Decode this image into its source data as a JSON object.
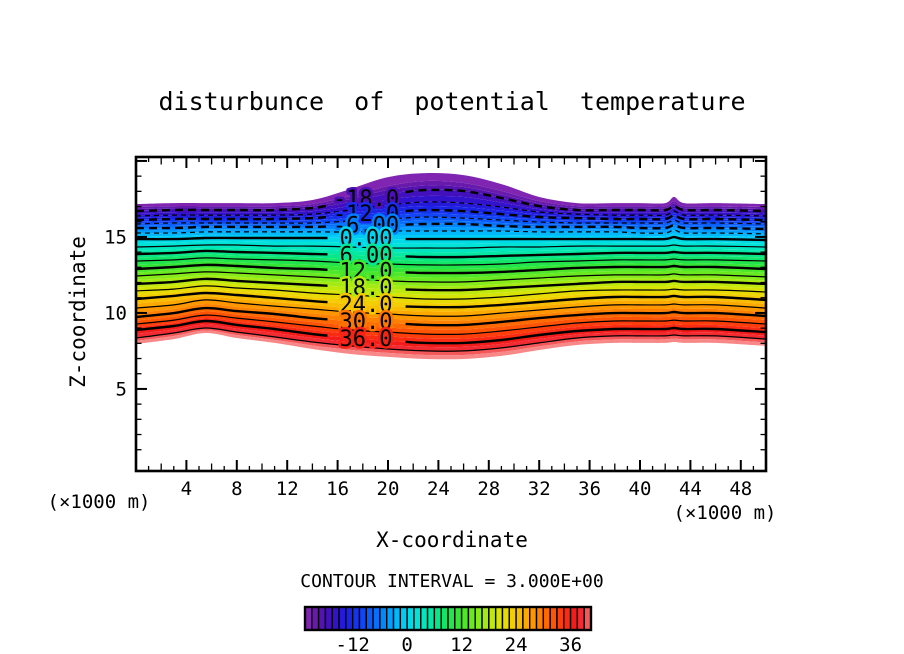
{
  "page": {
    "background": "#ffffff",
    "ink": "#000000"
  },
  "title": {
    "text": "disturbunce  of  potential  temperature"
  },
  "axes": {
    "x": {
      "label": "X-coordinate",
      "units": "(×1000 m)",
      "major_ticks": [
        4,
        8,
        12,
        16,
        20,
        24,
        28,
        32,
        36,
        40,
        44,
        48
      ],
      "minor_step": 1
    },
    "z": {
      "label": "Z-coordinate",
      "units": "(×1000 m)",
      "major_ticks": [
        5,
        10,
        15
      ],
      "minor_step": 1
    }
  },
  "footer": {
    "contour_interval_text": "CONTOUR INTERVAL = 3.000E+00"
  },
  "colorbar": {
    "vmin": -22.5,
    "vmax": 40.5,
    "cell_interval": 1.5,
    "tick_values": [
      -12,
      0,
      12,
      24,
      36
    ],
    "tick_labels": [
      "-12",
      "0",
      "12",
      "24",
      "36"
    ]
  },
  "chart_data": {
    "type": "filled-contour",
    "title": "disturbunce of potential temperature",
    "xlabel": "X-coordinate",
    "ylabel": "Z-coordinate",
    "units": "(×1000 m)",
    "contour_interval": 3,
    "xlim": [
      0,
      50
    ],
    "zlim": [
      -0.4,
      20.26
    ],
    "grid": false,
    "labeled_contours": [
      {
        "level": -18,
        "text": "-18.0"
      },
      {
        "level": -12,
        "text": "-12.0"
      },
      {
        "level": -6,
        "text": "-6.00"
      },
      {
        "level": 0,
        "text": "0.00"
      },
      {
        "level": 6,
        "text": "6.00"
      },
      {
        "level": 12,
        "text": "12.0"
      },
      {
        "level": 18,
        "text": "18.0"
      },
      {
        "level": 24,
        "text": "24.0"
      },
      {
        "level": 30,
        "text": "30.0"
      },
      {
        "level": 36,
        "text": "36.0"
      }
    ],
    "line_levels": [
      -18,
      -15,
      -12,
      -9,
      -6,
      -3,
      0,
      3,
      6,
      9,
      12,
      15,
      18,
      21,
      24,
      27,
      30,
      33,
      36,
      39
    ],
    "x_grid": [
      0,
      3,
      5.5,
      8,
      11,
      14,
      17,
      20,
      23,
      26,
      29,
      32,
      35,
      38,
      40,
      42,
      42.7,
      43.5,
      46,
      50
    ],
    "contours": [
      {
        "level": -22.5,
        "role": "fill-top",
        "z": [
          17.16,
          17.23,
          17.23,
          17.23,
          17.23,
          17.43,
          18.15,
          18.94,
          19.2,
          19.07,
          18.48,
          17.63,
          17.23,
          17.23,
          17.23,
          17.23,
          17.63,
          17.23,
          17.23,
          17.16
        ]
      },
      {
        "level": -21,
        "z": [
          16.97,
          17.03,
          17.03,
          17.03,
          17.03,
          17.17,
          17.69,
          18.35,
          18.68,
          18.55,
          18.02,
          17.36,
          17.03,
          17.03,
          17.03,
          17.03,
          17.36,
          17.03,
          17.03,
          16.97
        ]
      },
      {
        "level": -18,
        "z": [
          16.7,
          16.77,
          16.77,
          16.77,
          16.77,
          16.9,
          17.3,
          17.83,
          18.09,
          18.02,
          17.56,
          17.03,
          16.77,
          16.77,
          16.77,
          16.77,
          17.03,
          16.77,
          16.77,
          16.7
        ]
      },
      {
        "level": -15,
        "z": [
          16.38,
          16.44,
          16.44,
          16.44,
          16.44,
          16.5,
          16.77,
          17.1,
          17.3,
          17.23,
          16.97,
          16.64,
          16.5,
          16.44,
          16.44,
          16.44,
          16.7,
          16.44,
          16.44,
          16.38
        ]
      },
      {
        "level": -12,
        "z": [
          16.11,
          16.18,
          16.18,
          16.18,
          16.18,
          16.24,
          16.44,
          16.64,
          16.77,
          16.7,
          16.5,
          16.31,
          16.24,
          16.18,
          16.18,
          16.18,
          16.44,
          16.18,
          16.18,
          16.11
        ]
      },
      {
        "level": -9,
        "z": [
          15.85,
          15.92,
          15.92,
          15.92,
          15.92,
          15.92,
          16.05,
          16.18,
          16.31,
          16.24,
          16.11,
          15.98,
          15.92,
          15.92,
          15.92,
          15.92,
          16.11,
          15.92,
          15.92,
          15.85
        ]
      },
      {
        "level": -6,
        "z": [
          15.59,
          15.59,
          15.66,
          15.66,
          15.66,
          15.66,
          15.72,
          15.78,
          15.85,
          15.85,
          15.72,
          15.66,
          15.66,
          15.66,
          15.59,
          15.59,
          15.78,
          15.59,
          15.59,
          15.52
        ]
      },
      {
        "level": -3,
        "z": [
          15.26,
          15.26,
          15.33,
          15.33,
          15.33,
          15.33,
          15.33,
          15.39,
          15.39,
          15.39,
          15.39,
          15.33,
          15.33,
          15.33,
          15.26,
          15.26,
          15.46,
          15.26,
          15.26,
          15.2
        ]
      },
      {
        "level": 0,
        "z": [
          14.86,
          14.86,
          14.93,
          14.93,
          14.93,
          14.93,
          14.93,
          14.86,
          14.86,
          14.86,
          14.86,
          14.86,
          14.86,
          14.86,
          14.86,
          14.86,
          14.99,
          14.86,
          14.86,
          14.8
        ]
      },
      {
        "level": 3,
        "z": [
          14.34,
          14.4,
          14.47,
          14.47,
          14.4,
          14.4,
          14.34,
          14.27,
          14.27,
          14.27,
          14.34,
          14.34,
          14.4,
          14.4,
          14.4,
          14.4,
          14.47,
          14.4,
          14.4,
          14.34
        ]
      },
      {
        "level": 6,
        "z": [
          13.88,
          13.95,
          14.08,
          14.01,
          13.95,
          13.88,
          13.82,
          13.75,
          13.68,
          13.68,
          13.75,
          13.82,
          13.88,
          13.95,
          13.95,
          13.95,
          14.01,
          13.95,
          13.95,
          13.88
        ]
      },
      {
        "level": 9,
        "z": [
          13.42,
          13.49,
          13.62,
          13.55,
          13.49,
          13.42,
          13.29,
          13.22,
          13.16,
          13.16,
          13.22,
          13.36,
          13.42,
          13.49,
          13.49,
          13.49,
          13.55,
          13.49,
          13.49,
          13.42
        ]
      },
      {
        "level": 12,
        "z": [
          12.89,
          13.02,
          13.16,
          13.09,
          12.96,
          12.89,
          12.76,
          12.7,
          12.63,
          12.63,
          12.7,
          12.83,
          12.96,
          13.02,
          13.02,
          13.02,
          13.09,
          13.02,
          13.02,
          12.89
        ]
      },
      {
        "level": 15,
        "z": [
          12.43,
          12.57,
          12.7,
          12.63,
          12.5,
          12.37,
          12.24,
          12.11,
          12.04,
          12.04,
          12.17,
          12.3,
          12.43,
          12.5,
          12.5,
          12.5,
          12.57,
          12.5,
          12.5,
          12.37
        ]
      },
      {
        "level": 18,
        "z": [
          11.91,
          12.04,
          12.24,
          12.11,
          11.97,
          11.84,
          11.7,
          11.57,
          11.51,
          11.51,
          11.64,
          11.78,
          11.91,
          12.04,
          12.04,
          12.04,
          12.11,
          12.04,
          12.04,
          11.91
        ]
      },
      {
        "level": 21,
        "z": [
          11.45,
          11.57,
          11.78,
          11.64,
          11.51,
          11.31,
          11.18,
          11.05,
          10.92,
          10.92,
          11.05,
          11.25,
          11.45,
          11.51,
          11.51,
          11.51,
          11.57,
          11.51,
          11.51,
          11.38
        ]
      },
      {
        "level": 24,
        "z": [
          10.92,
          11.12,
          11.31,
          11.18,
          10.99,
          10.78,
          10.59,
          10.45,
          10.39,
          10.39,
          10.53,
          10.72,
          10.92,
          11.05,
          11.05,
          11.05,
          11.12,
          11.05,
          11.05,
          10.86
        ]
      },
      {
        "level": 27,
        "z": [
          10.32,
          10.53,
          10.86,
          10.66,
          10.45,
          10.26,
          10.06,
          9.93,
          9.8,
          9.8,
          9.99,
          10.19,
          10.39,
          10.53,
          10.53,
          10.53,
          10.59,
          10.53,
          10.53,
          10.32
        ]
      },
      {
        "level": 30,
        "z": [
          9.73,
          9.99,
          10.32,
          10.12,
          9.93,
          9.66,
          9.47,
          9.34,
          9.21,
          9.21,
          9.41,
          9.66,
          9.86,
          9.99,
          9.99,
          9.99,
          10.06,
          9.99,
          9.99,
          9.8
        ]
      },
      {
        "level": 33,
        "z": [
          9.27,
          9.53,
          9.86,
          9.66,
          9.41,
          9.14,
          8.88,
          8.74,
          8.61,
          8.61,
          8.81,
          9.08,
          9.34,
          9.47,
          9.47,
          9.47,
          9.53,
          9.47,
          9.47,
          9.27
        ]
      },
      {
        "level": 36,
        "z": [
          8.88,
          9.14,
          9.47,
          9.21,
          8.94,
          8.61,
          8.35,
          8.16,
          8.03,
          8.03,
          8.22,
          8.55,
          8.81,
          8.94,
          8.94,
          8.94,
          9.01,
          8.94,
          8.94,
          8.74
        ]
      },
      {
        "level": 39,
        "z": [
          8.35,
          8.68,
          9.01,
          8.74,
          8.42,
          8.09,
          7.83,
          7.63,
          7.5,
          7.5,
          7.7,
          8.03,
          8.35,
          8.49,
          8.49,
          8.49,
          8.55,
          8.49,
          8.49,
          8.28
        ]
      },
      {
        "level": 42,
        "role": "fill-bottom",
        "z": [
          7.96,
          8.28,
          8.68,
          8.35,
          8.03,
          7.63,
          7.3,
          7.11,
          6.97,
          6.97,
          7.17,
          7.56,
          7.89,
          8.03,
          8.03,
          8.03,
          8.09,
          8.03,
          8.03,
          7.83
        ]
      }
    ],
    "colormap_anchors": [
      [
        -22.5,
        [
          140,
          43,
          180
        ]
      ],
      [
        -19.5,
        [
          92,
          20,
          168
        ]
      ],
      [
        -16.5,
        [
          58,
          14,
          196
        ]
      ],
      [
        -13.5,
        [
          30,
          28,
          225
        ]
      ],
      [
        -10.5,
        [
          18,
          60,
          242
        ]
      ],
      [
        -7.5,
        [
          8,
          100,
          252
        ]
      ],
      [
        -4.5,
        [
          0,
          148,
          255
        ]
      ],
      [
        -1.5,
        [
          0,
          196,
          250
        ]
      ],
      [
        1.5,
        [
          0,
          225,
          225
        ]
      ],
      [
        4.5,
        [
          0,
          232,
          180
        ]
      ],
      [
        7.5,
        [
          10,
          230,
          120
        ]
      ],
      [
        10.5,
        [
          40,
          228,
          60
        ]
      ],
      [
        13.5,
        [
          90,
          232,
          35
        ]
      ],
      [
        16.5,
        [
          150,
          235,
          22
        ]
      ],
      [
        19.5,
        [
          205,
          232,
          10
        ]
      ],
      [
        22.5,
        [
          240,
          215,
          0
        ]
      ],
      [
        25.5,
        [
          252,
          180,
          0
        ]
      ],
      [
        28.5,
        [
          255,
          140,
          0
        ]
      ],
      [
        31.5,
        [
          255,
          95,
          0
        ]
      ],
      [
        34.5,
        [
          252,
          50,
          15
        ]
      ],
      [
        37.5,
        [
          240,
          20,
          30
        ]
      ],
      [
        40.5,
        [
          246,
          110,
          110
        ]
      ],
      [
        42,
        [
          250,
          160,
          160
        ]
      ]
    ]
  }
}
